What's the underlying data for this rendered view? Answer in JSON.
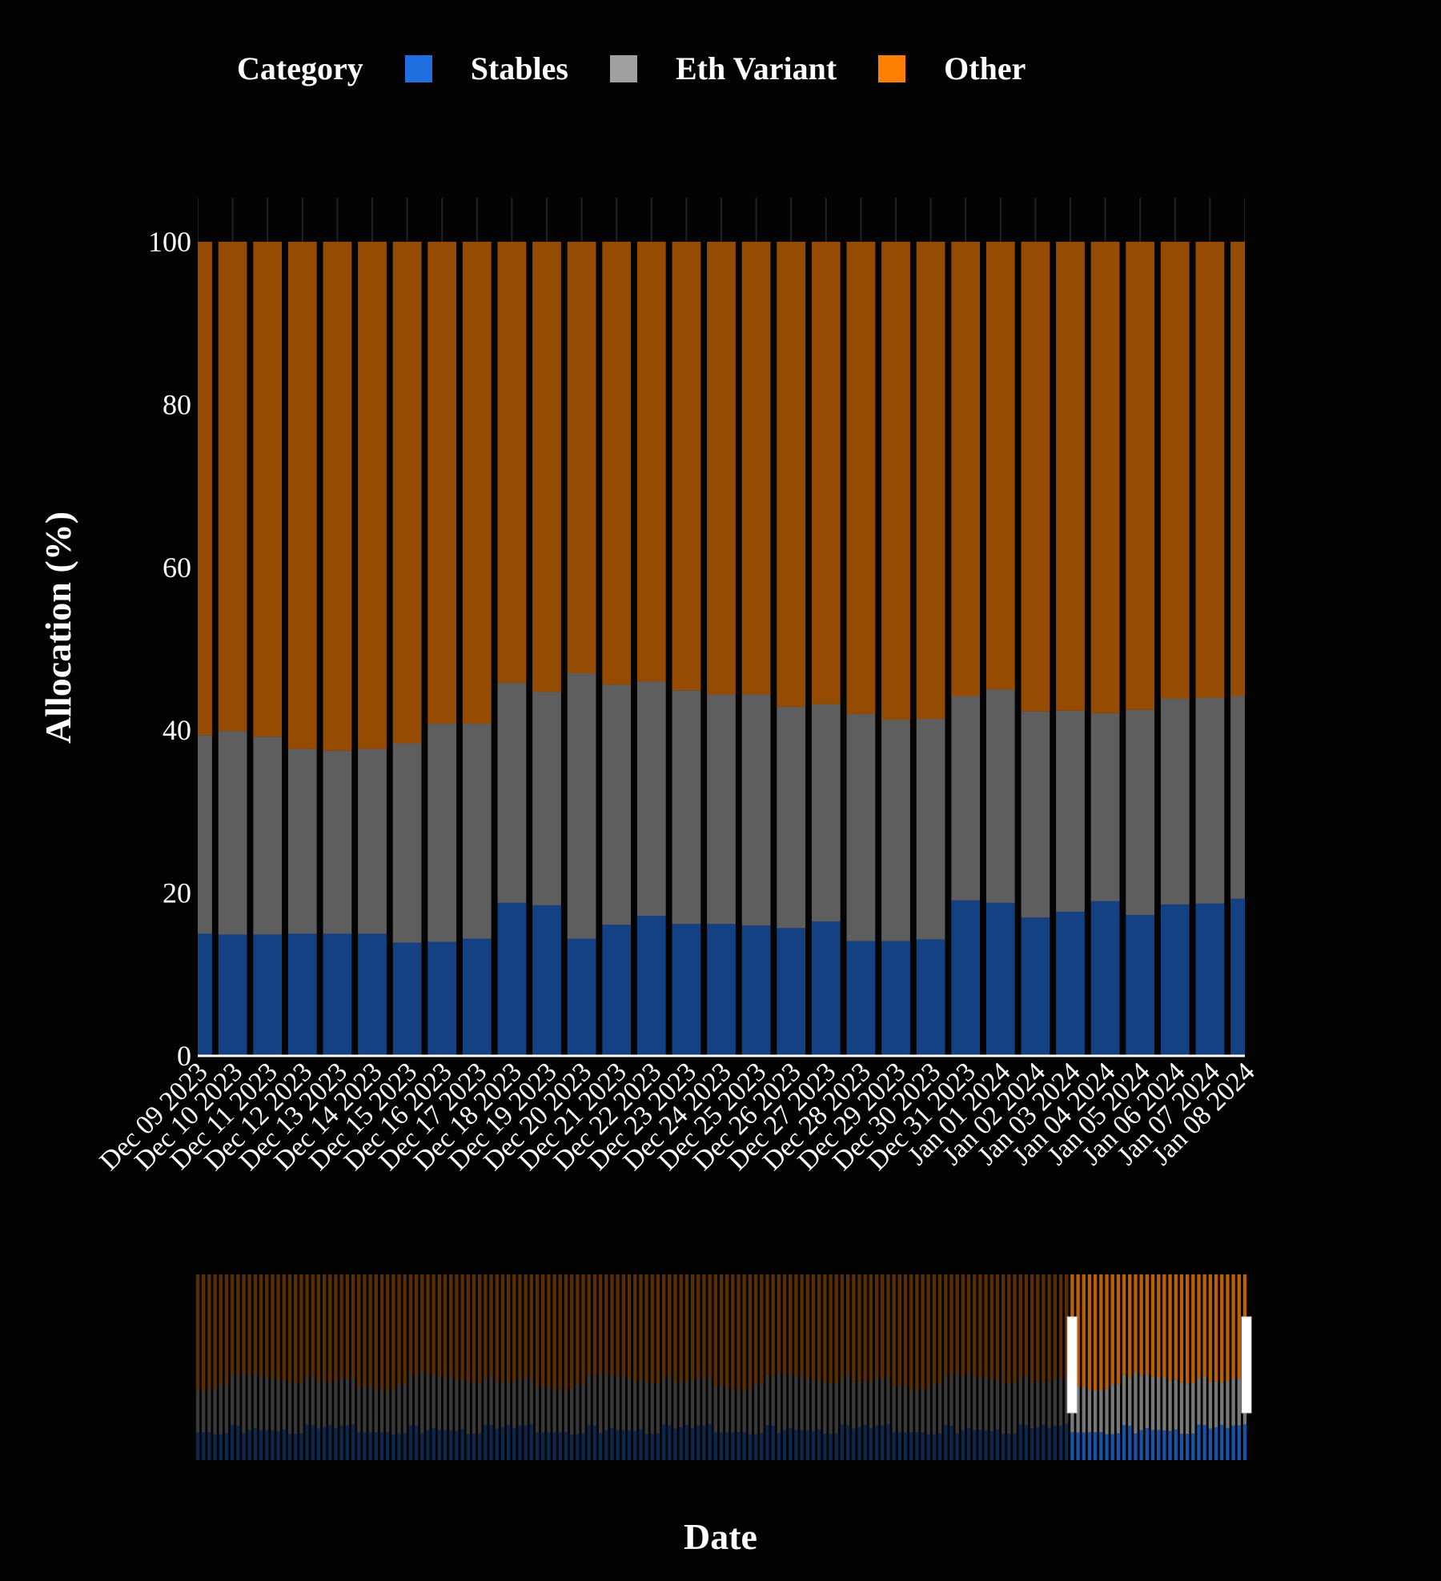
{
  "legend": {
    "title": "Category",
    "items": [
      {
        "name": "Stables",
        "color": "#1f6fe0"
      },
      {
        "name": "Eth Variant",
        "color": "#a0a0a0"
      },
      {
        "name": "Other",
        "color": "#ff8000"
      }
    ]
  },
  "chart_data": {
    "type": "bar",
    "stacked": true,
    "xlabel": "Date",
    "ylabel": "Allocation (%)",
    "ylim": [
      0,
      100
    ],
    "yticks": [
      0,
      20,
      40,
      60,
      80,
      100
    ],
    "grid": false,
    "legend_placement": "top",
    "rangeslider": true,
    "categories": [
      "Dec 09 2023",
      "Dec 10 2023",
      "Dec 11 2023",
      "Dec 12 2023",
      "Dec 13 2023",
      "Dec 14 2023",
      "Dec 15 2023",
      "Dec 16 2023",
      "Dec 17 2023",
      "Dec 18 2023",
      "Dec 19 2023",
      "Dec 20 2023",
      "Dec 21 2023",
      "Dec 22 2023",
      "Dec 23 2023",
      "Dec 24 2023",
      "Dec 25 2023",
      "Dec 26 2023",
      "Dec 27 2023",
      "Dec 28 2023",
      "Dec 29 2023",
      "Dec 30 2023",
      "Dec 31 2023",
      "Jan 01 2024",
      "Jan 02 2024",
      "Jan 03 2024",
      "Jan 04 2024",
      "Jan 05 2024",
      "Jan 06 2024",
      "Jan 07 2024",
      "Jan 08 2024"
    ],
    "series": [
      {
        "name": "Stables",
        "color": "#1f6fe0",
        "values": [
          15.0,
          14.9,
          14.9,
          15.0,
          15.0,
          15.0,
          13.9,
          14.0,
          14.4,
          18.8,
          18.5,
          14.4,
          16.1,
          17.2,
          16.2,
          16.2,
          16.0,
          15.7,
          16.5,
          14.1,
          14.1,
          14.3,
          19.1,
          18.8,
          17.0,
          17.7,
          19.0,
          17.3,
          18.6,
          18.7,
          19.3
        ]
      },
      {
        "name": "Eth Variant",
        "color": "#a0a0a0",
        "values": [
          24.4,
          25.0,
          24.3,
          22.7,
          22.5,
          22.7,
          24.5,
          26.8,
          26.4,
          27.0,
          26.2,
          32.6,
          29.5,
          28.8,
          28.7,
          28.2,
          28.4,
          27.2,
          26.7,
          27.9,
          27.2,
          27.1,
          25.1,
          26.2,
          25.3,
          24.7,
          23.1,
          25.2,
          25.3,
          25.3,
          24.9
        ]
      },
      {
        "name": "Other",
        "color": "#ff8000",
        "values": [
          60.6,
          60.1,
          60.8,
          62.3,
          62.5,
          62.3,
          61.6,
          59.2,
          59.2,
          54.2,
          55.3,
          53.0,
          54.4,
          54.0,
          55.1,
          55.6,
          55.6,
          57.1,
          56.8,
          58.0,
          58.7,
          58.6,
          55.8,
          55.0,
          57.7,
          57.6,
          57.9,
          57.5,
          56.1,
          56.0,
          55.8
        ]
      }
    ]
  }
}
